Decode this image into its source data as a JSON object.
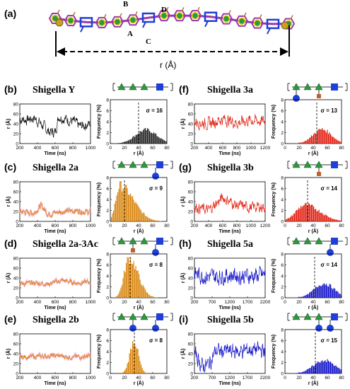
{
  "header": {
    "label": "(a)",
    "markers": [
      "A",
      "B",
      "C",
      "D"
    ],
    "distance_label": "r (Å)"
  },
  "axis_text": {
    "time_label": "Time (ns)",
    "r_label": "r (Å)",
    "freq_label": "Frequency (%)",
    "r_xlabel": "r (Å)"
  },
  "colors": {
    "black": "#111111",
    "orange": "#d9850f",
    "red": "#e02010",
    "blue": "#1414c8",
    "glc": "#1f3fd8",
    "rha": "#2a9a3a",
    "gal": "#e8d21c",
    "backbone": "#9a3aa8"
  },
  "chart_data": [
    {
      "panel_id": "b",
      "panel_label": "(b)",
      "title": "Shigella Y",
      "color": "black",
      "ts": {
        "xlim": [
          200,
          1000
        ],
        "xticks": [
          200,
          400,
          600,
          800,
          1000
        ],
        "ylim": [
          0,
          80
        ],
        "yticks": [
          0,
          20,
          40,
          60,
          80
        ],
        "levels": [
          [
            0,
            50
          ],
          [
            0.1,
            48
          ],
          [
            0.2,
            52
          ],
          [
            0.3,
            40
          ],
          [
            0.4,
            25
          ],
          [
            0.5,
            22
          ],
          [
            0.55,
            55
          ],
          [
            0.65,
            50
          ],
          [
            0.75,
            45
          ],
          [
            0.85,
            35
          ],
          [
            1,
            40
          ]
        ],
        "noise": 9
      },
      "hist": {
        "xlim": [
          0,
          80
        ],
        "xticks": [
          0,
          20,
          40,
          60,
          80
        ],
        "ylim": [
          0,
          8
        ],
        "yticks": [
          0,
          2,
          4,
          6,
          8
        ],
        "peak": 50,
        "width": 15,
        "height": 2.5,
        "skew": 0,
        "sigma_text": "σ = 16",
        "mean": 40
      },
      "glycan": {
        "branches": []
      }
    },
    {
      "panel_id": "c",
      "panel_label": "(c)",
      "title": "Shigella 2a",
      "color": "orange",
      "ts": {
        "xlim": [
          200,
          1000
        ],
        "xticks": [
          200,
          400,
          600,
          800,
          1000
        ],
        "ylim": [
          0,
          80
        ],
        "yticks": [
          0,
          20,
          40,
          60,
          80
        ],
        "levels": [
          [
            0,
            20
          ],
          [
            0.2,
            17
          ],
          [
            0.3,
            32
          ],
          [
            0.4,
            15
          ],
          [
            0.6,
            20
          ],
          [
            0.8,
            22
          ],
          [
            1,
            18
          ]
        ],
        "noise": 5
      },
      "hist": {
        "xlim": [
          0,
          80
        ],
        "xticks": [
          0,
          20,
          40,
          60,
          80
        ],
        "ylim": [
          0,
          8
        ],
        "yticks": [
          0,
          2,
          4,
          6,
          8
        ],
        "peak": 13,
        "width": 6,
        "height": 6.5,
        "skew": 2.2,
        "sigma_text": "σ = 9",
        "mean": 20
      },
      "glycan": {
        "branches": [
          {
            "pos": 3,
            "side": "down",
            "type": "glc"
          }
        ]
      }
    },
    {
      "panel_id": "d",
      "panel_label": "(d)",
      "title": "Shigella 2a-3Ac",
      "color": "orange",
      "ts": {
        "xlim": [
          200,
          1000
        ],
        "xticks": [
          200,
          400,
          600,
          800,
          1000
        ],
        "ylim": [
          0,
          80
        ],
        "yticks": [
          0,
          20,
          40,
          60,
          80
        ],
        "levels": [
          [
            0,
            28
          ],
          [
            0.2,
            30
          ],
          [
            0.4,
            28
          ],
          [
            0.6,
            35
          ],
          [
            0.8,
            30
          ],
          [
            1,
            32
          ]
        ],
        "noise": 4
      },
      "hist": {
        "xlim": [
          0,
          80
        ],
        "xticks": [
          0,
          20,
          40,
          60,
          80
        ],
        "ylim": [
          0,
          8
        ],
        "yticks": [
          0,
          2,
          4,
          6,
          8
        ],
        "peak": 26,
        "width": 7,
        "height": 7.2,
        "skew": 0.8,
        "sigma_text": "σ = 8",
        "mean": 28
      },
      "glycan": {
        "branches": [
          {
            "pos": 1,
            "side": "down",
            "type": "ac"
          },
          {
            "pos": 3,
            "side": "down",
            "type": "glc"
          }
        ]
      }
    },
    {
      "panel_id": "e",
      "panel_label": "(e)",
      "title": "Shigella 2b",
      "color": "orange",
      "ts": {
        "xlim": [
          200,
          1000
        ],
        "xticks": [
          200,
          400,
          600,
          800,
          1000
        ],
        "ylim": [
          0,
          80
        ],
        "yticks": [
          0,
          20,
          40,
          60,
          80
        ],
        "levels": [
          [
            0,
            33
          ],
          [
            0.25,
            34
          ],
          [
            0.5,
            36
          ],
          [
            0.75,
            33
          ],
          [
            1,
            35
          ]
        ],
        "noise": 4
      },
      "hist": {
        "xlim": [
          0,
          80
        ],
        "xticks": [
          0,
          20,
          40,
          60,
          80
        ],
        "ylim": [
          0,
          8
        ],
        "yticks": [
          0,
          2,
          4,
          6,
          8
        ],
        "peak": 33,
        "width": 6,
        "height": 6.0,
        "skew": 0,
        "sigma_text": "σ = 8",
        "mean": 34
      },
      "glycan": {
        "branches": [
          {
            "pos": 1,
            "side": "down",
            "type": "glc"
          },
          {
            "pos": 3,
            "side": "down",
            "type": "glc"
          }
        ]
      }
    },
    {
      "panel_id": "f",
      "panel_label": "(f)",
      "title": "Shigella 3a",
      "color": "red",
      "ts": {
        "xlim": [
          200,
          1200
        ],
        "xticks": [
          200,
          400,
          600,
          800,
          1000,
          1200
        ],
        "ylim": [
          0,
          80
        ],
        "yticks": [
          0,
          20,
          40,
          60,
          80
        ],
        "levels": [
          [
            0,
            45
          ],
          [
            0.2,
            40
          ],
          [
            0.4,
            50
          ],
          [
            0.6,
            42
          ],
          [
            0.8,
            48
          ],
          [
            1,
            44
          ]
        ],
        "noise": 10
      },
      "hist": {
        "xlim": [
          0,
          80
        ],
        "xticks": [
          0,
          20,
          40,
          60,
          80
        ],
        "ylim": [
          0,
          8
        ],
        "yticks": [
          0,
          2,
          4,
          6,
          8
        ],
        "peak": 52,
        "width": 13,
        "height": 2.6,
        "skew": 0,
        "sigma_text": "σ = 13",
        "mean": 45
      },
      "glycan": {
        "branches": [
          {
            "pos": 0,
            "side": "down",
            "type": "glc"
          },
          {
            "pos": 2,
            "side": "down",
            "type": "ac"
          }
        ]
      }
    },
    {
      "panel_id": "g",
      "panel_label": "(g)",
      "title": "Shigella 3b",
      "color": "red",
      "ts": {
        "xlim": [
          200,
          1200
        ],
        "xticks": [
          200,
          400,
          600,
          800,
          1000,
          1200
        ],
        "ylim": [
          0,
          80
        ],
        "yticks": [
          0,
          20,
          40,
          60,
          80
        ],
        "levels": [
          [
            0,
            30
          ],
          [
            0.2,
            22
          ],
          [
            0.4,
            48
          ],
          [
            0.6,
            32
          ],
          [
            0.8,
            28
          ],
          [
            1,
            30
          ]
        ],
        "noise": 9
      },
      "hist": {
        "xlim": [
          0,
          80
        ],
        "xticks": [
          0,
          20,
          40,
          60,
          80
        ],
        "ylim": [
          0,
          8
        ],
        "yticks": [
          0,
          2,
          4,
          6,
          8
        ],
        "peak": 28,
        "width": 13,
        "height": 3.0,
        "skew": 0.6,
        "sigma_text": "σ = 14",
        "mean": 32
      },
      "glycan": {
        "branches": [
          {
            "pos": 2,
            "side": "down",
            "type": "ac"
          }
        ]
      }
    },
    {
      "panel_id": "h",
      "panel_label": "(h)",
      "title": "Shigella 5a",
      "color": "blue",
      "ts": {
        "xlim": [
          200,
          2200
        ],
        "xticks": [
          200,
          700,
          1200,
          1700,
          2200
        ],
        "ylim": [
          0,
          80
        ],
        "yticks": [
          0,
          20,
          40,
          60,
          80
        ],
        "levels": [
          [
            0,
            48
          ],
          [
            0.25,
            42
          ],
          [
            0.5,
            46
          ],
          [
            0.75,
            44
          ],
          [
            1,
            45
          ]
        ],
        "noise": 14
      },
      "hist": {
        "xlim": [
          0,
          80
        ],
        "xticks": [
          0,
          20,
          40,
          60,
          80
        ],
        "ylim": [
          0,
          8
        ],
        "yticks": [
          0,
          2,
          4,
          6,
          8
        ],
        "peak": 55,
        "width": 14,
        "height": 2.6,
        "skew": 0,
        "sigma_text": "σ = 14",
        "mean": 42
      },
      "glycan": {
        "branches": [
          {
            "pos": 3,
            "side": "down",
            "type": "glc"
          }
        ]
      }
    },
    {
      "panel_id": "i",
      "panel_label": "(i)",
      "title": "Shigella 5b",
      "color": "blue",
      "ts": {
        "xlim": [
          200,
          2200
        ],
        "xticks": [
          200,
          700,
          1200,
          1700,
          2200
        ],
        "ylim": [
          0,
          80
        ],
        "yticks": [
          0,
          20,
          40,
          60,
          80
        ],
        "levels": [
          [
            0,
            40
          ],
          [
            0.05,
            30
          ],
          [
            0.1,
            15
          ],
          [
            0.2,
            18
          ],
          [
            0.3,
            45
          ],
          [
            0.6,
            44
          ],
          [
            0.8,
            48
          ],
          [
            1,
            46
          ]
        ],
        "noise": 13
      },
      "hist": {
        "xlim": [
          0,
          80
        ],
        "xticks": [
          0,
          20,
          40,
          60,
          80
        ],
        "ylim": [
          0,
          8
        ],
        "yticks": [
          0,
          2,
          4,
          6,
          8
        ],
        "peak": 55,
        "width": 15,
        "height": 2.4,
        "skew": 0,
        "sigma_text": "σ = 15",
        "mean": 43
      },
      "glycan": {
        "branches": [
          {
            "pos": 2,
            "side": "down",
            "type": "glc"
          },
          {
            "pos": 3,
            "side": "down",
            "type": "glc"
          }
        ]
      }
    }
  ]
}
